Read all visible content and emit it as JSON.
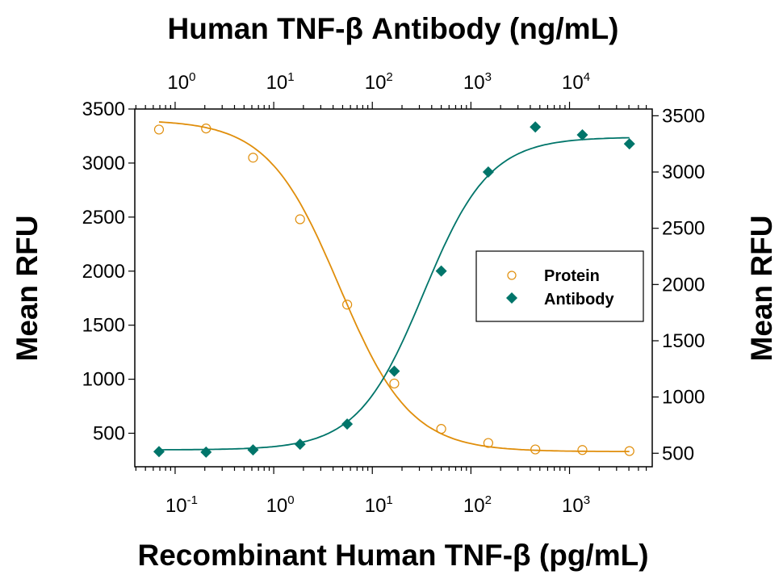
{
  "chart_data": {
    "type": "scatter",
    "title": "",
    "top_xlabel": "Human TNF-β Antibody (ng/mL)",
    "bottom_xlabel": "Recombinant Human TNF-β (pg/mL)",
    "left_ylabel": "Mean RFU",
    "right_ylabel": "Mean RFU",
    "x_scale": "log",
    "bottom_xlim": [
      0.039,
      6900
    ],
    "top_xlim": [
      0.39,
      69000
    ],
    "left_ylim": [
      190,
      3500
    ],
    "right_ylim": [
      380,
      3560
    ],
    "bottom_ticks": [
      {
        "base": "10",
        "exp": "-1",
        "value": 0.1
      },
      {
        "base": "10",
        "exp": "0",
        "value": 1
      },
      {
        "base": "10",
        "exp": "1",
        "value": 10
      },
      {
        "base": "10",
        "exp": "2",
        "value": 100
      },
      {
        "base": "10",
        "exp": "3",
        "value": 1000
      }
    ],
    "top_ticks": [
      {
        "base": "10",
        "exp": "0",
        "value": 1
      },
      {
        "base": "10",
        "exp": "1",
        "value": 10
      },
      {
        "base": "10",
        "exp": "2",
        "value": 100
      },
      {
        "base": "10",
        "exp": "3",
        "value": 1000
      },
      {
        "base": "10",
        "exp": "4",
        "value": 10000
      }
    ],
    "left_ticks": [
      "500",
      "1000",
      "1500",
      "2000",
      "2500",
      "3000",
      "3500"
    ],
    "right_ticks": [
      "500",
      "1000",
      "1500",
      "2000",
      "2500",
      "3000",
      "3500"
    ],
    "grid": false,
    "legend_position": "right-middle",
    "series": [
      {
        "name": "Protein",
        "axis": "bottom-left",
        "marker": "open-circle",
        "color": "#E08E0B",
        "x": [
          0.0686,
          0.206,
          0.617,
          1.85,
          5.56,
          16.7,
          50,
          150,
          450,
          1350,
          4050
        ],
        "y": [
          3310,
          3320,
          3050,
          2480,
          1690,
          960,
          540,
          410,
          350,
          345,
          335
        ],
        "fit": {
          "top": 3400,
          "bottom": 330,
          "ec50": 4.6,
          "hill": 1.2
        }
      },
      {
        "name": "Antibody",
        "axis": "top-right",
        "marker": "filled-diamond",
        "color": "#00756A",
        "x": [
          0.686,
          2.06,
          6.17,
          18.5,
          55.6,
          167,
          500,
          1500,
          4500,
          13500,
          40500
        ],
        "y": [
          515,
          510,
          530,
          580,
          760,
          1230,
          2120,
          3000,
          3400,
          3330,
          3250
        ],
        "fit": {
          "top": 3310,
          "bottom": 530,
          "ec50": 330,
          "hill": 1.3
        }
      }
    ]
  }
}
